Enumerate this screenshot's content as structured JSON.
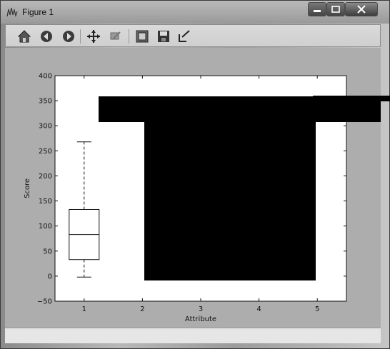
{
  "window": {
    "title": "Figure 1"
  },
  "toolbar": {
    "buttons": [
      {
        "name": "home",
        "icon": "home-icon"
      },
      {
        "name": "back",
        "icon": "back-arrow-icon"
      },
      {
        "name": "forward",
        "icon": "forward-arrow-icon"
      },
      {
        "name": "pan",
        "icon": "pan-arrows-icon"
      },
      {
        "name": "zoom",
        "icon": "zoom-icon"
      },
      {
        "name": "subplots",
        "icon": "subplots-icon"
      },
      {
        "name": "save",
        "icon": "save-icon"
      },
      {
        "name": "edit",
        "icon": "edit-axes-icon"
      }
    ]
  },
  "chart_data": {
    "type": "box",
    "xlabel": "Attribute",
    "ylabel": "Score",
    "ylim": [
      -50,
      400
    ],
    "yticks": [
      -50,
      0,
      50,
      100,
      150,
      200,
      250,
      300,
      350,
      400
    ],
    "xlim": [
      0.5,
      5.5
    ],
    "xticks": [
      1,
      2,
      3,
      4,
      5
    ],
    "grid": false,
    "boxes": [
      {
        "position": 1,
        "whisker_low": -2,
        "q1": 33,
        "median": 83,
        "q3": 133,
        "whisker_high": 268
      }
    ],
    "redactions": [
      {
        "label": "redaction"
      }
    ],
    "colors": {
      "box": "#111111",
      "redaction": "#000000",
      "axes_bg": "#ffffff",
      "figure_bg": "#adadad"
    }
  }
}
